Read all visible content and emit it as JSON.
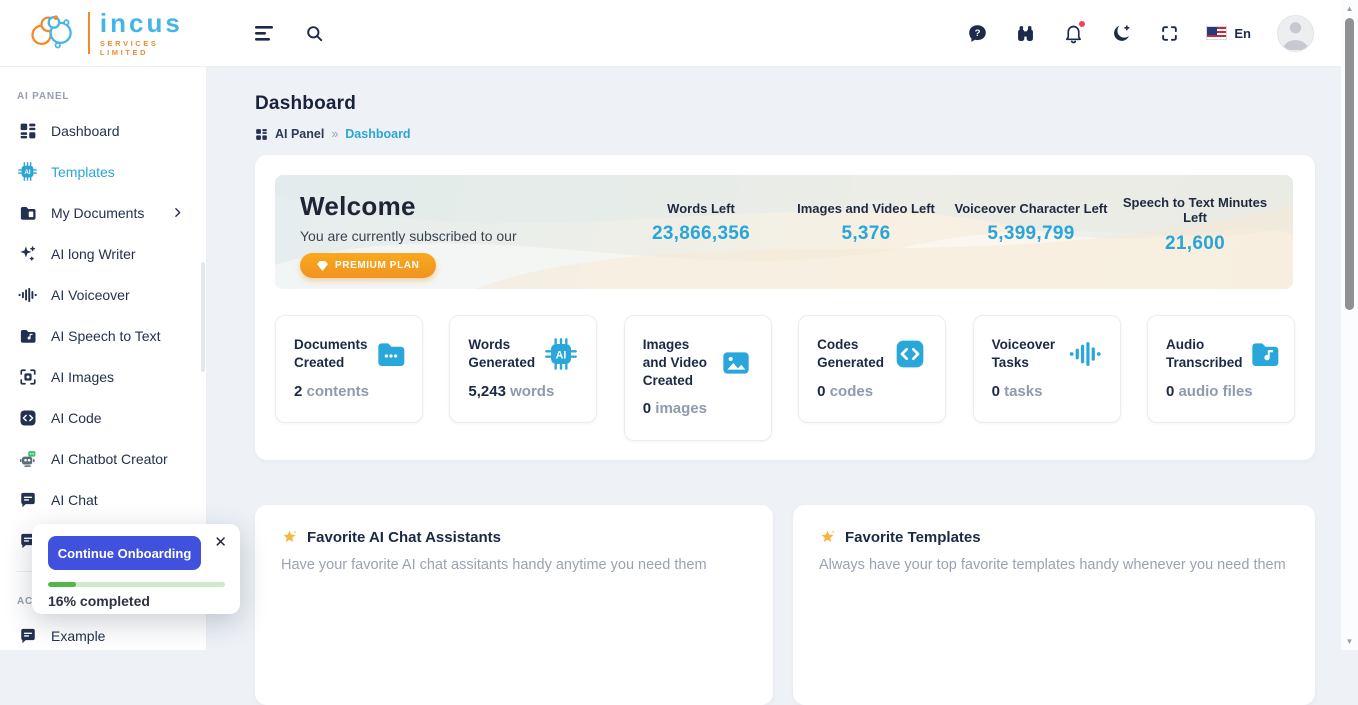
{
  "brand": {
    "name": "incus",
    "tagline": "SERVICES LIMITED"
  },
  "topbar": {
    "language": "En"
  },
  "page": {
    "title": "Dashboard",
    "breadcrumb_root": "AI Panel",
    "breadcrumb_sep": "»",
    "breadcrumb_current": "Dashboard"
  },
  "sidebar": {
    "section1": "AI PANEL",
    "items": [
      {
        "label": "Dashboard",
        "icon": "dashboard-grid-icon"
      },
      {
        "label": "Templates",
        "icon": "ai-chip-icon"
      },
      {
        "label": "My Documents",
        "icon": "folder-icon"
      },
      {
        "label": "AI long Writer",
        "icon": "sparkles-icon"
      },
      {
        "label": "AI Voiceover",
        "icon": "waveform-icon"
      },
      {
        "label": "AI Speech to Text",
        "icon": "folder-music-icon"
      },
      {
        "label": "AI Images",
        "icon": "viewfinder-icon"
      },
      {
        "label": "AI Code",
        "icon": "code-icon"
      },
      {
        "label": "AI Chatbot Creator",
        "icon": "robot-icon"
      },
      {
        "label": "AI Chat",
        "icon": "chat-icon"
      },
      {
        "label": "",
        "icon": "chat-icon"
      }
    ],
    "section2": "AC",
    "example_label": "Example"
  },
  "banner": {
    "title": "Welcome",
    "subtitle": "You are currently subscribed to our",
    "plan_label": "PREMIUM PLAN",
    "stats": [
      {
        "label": "Words Left",
        "value": "23,866,356"
      },
      {
        "label": "Images and Video Left",
        "value": "5,376"
      },
      {
        "label": "Voiceover Character Left",
        "value": "5,399,799"
      },
      {
        "label": "Speech to Text Minutes Left",
        "value": "21,600"
      }
    ]
  },
  "stat_cards": [
    {
      "title": "Documents Created",
      "value": "2",
      "unit": "contents",
      "icon": "folder-icon"
    },
    {
      "title": "Words Generated",
      "value": "5,243",
      "unit": "words",
      "icon": "ai-chip-icon"
    },
    {
      "title": "Images and Video Created",
      "value": "0",
      "unit": "images",
      "icon": "image-icon"
    },
    {
      "title": "Codes Generated",
      "value": "0",
      "unit": "codes",
      "icon": "code-icon"
    },
    {
      "title": "Voiceover Tasks",
      "value": "0",
      "unit": "tasks",
      "icon": "waveform-icon"
    },
    {
      "title": "Audio Transcribed",
      "value": "0",
      "unit": "audio files",
      "icon": "folder-music-icon"
    }
  ],
  "favorites": [
    {
      "title": "Favorite AI Chat Assistants",
      "subtitle": "Have your favorite AI chat assitants handy anytime you need them"
    },
    {
      "title": "Favorite Templates",
      "subtitle": "Always have your top favorite templates handy whenever you need them"
    }
  ],
  "onboarding": {
    "button_label": "Continue Onboarding",
    "close_label": "✕",
    "progress_text": "16% completed",
    "progress_percent": 16
  },
  "colors": {
    "accent_blue": "#2aa6d5",
    "navy": "#1d2b4a",
    "orange": "#f49b1d",
    "logo_blue": "#45b5e8",
    "onboarding_blue": "#3f51dd",
    "progress_green": "#53b649",
    "badge_red": "#f43f5e"
  }
}
